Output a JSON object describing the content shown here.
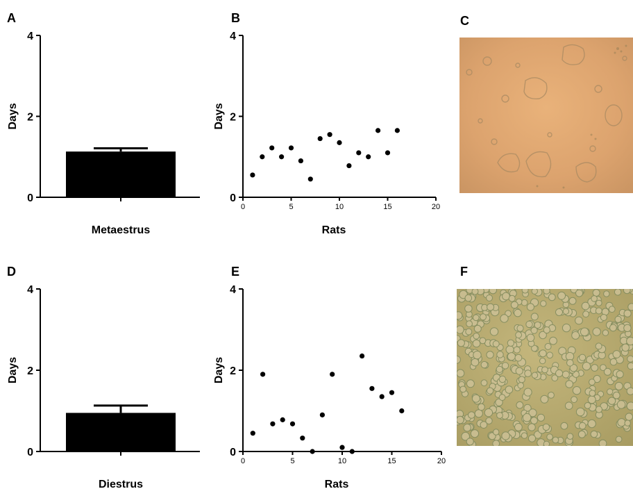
{
  "panel_letters": [
    "A",
    "B",
    "C",
    "D",
    "E",
    "F"
  ],
  "chart_data": [
    {
      "panel": "A",
      "type": "bar",
      "categories": [
        "Metaestrus"
      ],
      "values": [
        1.13
      ],
      "error": [
        0.08
      ],
      "ylabel": "Days",
      "xlabel": "",
      "ylim": [
        0,
        4
      ],
      "yticks": [
        0,
        2,
        4
      ],
      "color": "#000000"
    },
    {
      "panel": "B",
      "type": "scatter",
      "xlabel": "Rats",
      "ylabel": "Days",
      "xlim": [
        0,
        20
      ],
      "ylim": [
        0,
        4
      ],
      "xticks": [
        0,
        5,
        10,
        15,
        20
      ],
      "yticks": [
        0,
        2,
        4
      ],
      "x": [
        1,
        2,
        3,
        4,
        5,
        6,
        7,
        8,
        9,
        10,
        11,
        12,
        13,
        14,
        15,
        16
      ],
      "y": [
        0.55,
        1.0,
        1.22,
        1.0,
        1.22,
        0.9,
        0.45,
        1.45,
        1.55,
        1.35,
        0.78,
        1.1,
        1.0,
        1.65,
        1.1,
        1.65
      ]
    },
    {
      "panel": "D",
      "type": "bar",
      "categories": [
        "Diestrus"
      ],
      "values": [
        0.95
      ],
      "error": [
        0.18
      ],
      "ylabel": "Days",
      "xlabel": "",
      "ylim": [
        0,
        4
      ],
      "yticks": [
        0,
        2,
        4
      ],
      "color": "#000000"
    },
    {
      "panel": "E",
      "type": "scatter",
      "xlabel": "Rats",
      "ylabel": "Days",
      "xlim": [
        0,
        20
      ],
      "ylim": [
        0,
        4
      ],
      "xticks": [
        0,
        5,
        10,
        15,
        20
      ],
      "yticks": [
        0,
        2,
        4
      ],
      "x": [
        1,
        2,
        3,
        4,
        5,
        6,
        7,
        8,
        9,
        10,
        11,
        12,
        13,
        14,
        15,
        16
      ],
      "y": [
        0.45,
        1.9,
        0.68,
        0.78,
        0.68,
        0.33,
        0.0,
        0.9,
        1.9,
        0.1,
        0.0,
        2.35,
        1.55,
        1.35,
        1.45,
        1.0
      ]
    }
  ],
  "images": [
    {
      "panel": "C",
      "subject": "micrograph",
      "tint": "#e0a870"
    },
    {
      "panel": "F",
      "subject": "micrograph",
      "tint": "#b8aa6e"
    }
  ]
}
